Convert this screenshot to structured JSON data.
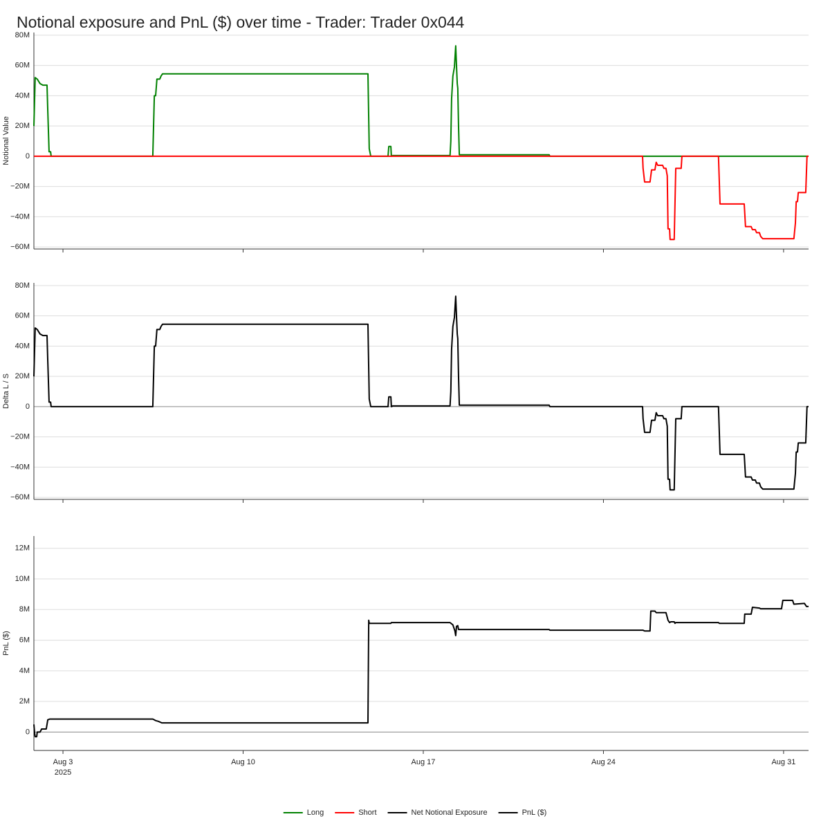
{
  "title": "Notional exposure and PnL ($) over time - Trader: Trader 0x044",
  "chart_data": [
    {
      "type": "line",
      "ylabel": "Notional Value",
      "xlim": [
        1.87,
        31.97
      ],
      "ylim": [
        -61300000.0,
        81800000.0
      ],
      "yticks": [
        {
          "value": 80000000.0,
          "label": "80M"
        },
        {
          "value": 60000000.0,
          "label": "60M"
        },
        {
          "value": 40000000.0,
          "label": "40M"
        },
        {
          "value": 20000000.0,
          "label": "20M"
        },
        0,
        {
          "value": -20000000.0,
          "label": "−20M"
        },
        {
          "value": -40000000.0,
          "label": "−40M"
        },
        {
          "value": -60000000.0,
          "label": "−60M"
        }
      ],
      "grid": true,
      "series": [
        {
          "name": "Long",
          "color": "#008000",
          "x": [
            1.87,
            1.92,
            2.0,
            2.11,
            2.22,
            2.38,
            2.41,
            2.46,
            2.52,
            2.54,
            6.49,
            6.55,
            6.6,
            6.65,
            6.76,
            6.81,
            6.87,
            14.85,
            14.9,
            14.96,
            15.63,
            15.66,
            15.74,
            15.76,
            15.82,
            18.04,
            18.07,
            18.1,
            18.15,
            18.21,
            18.26,
            18.29,
            18.32,
            18.34,
            18.37,
            18.4,
            21.89,
            21.92,
            31.97
          ],
          "values": [
            20000000.0,
            52000000.0,
            51000000.0,
            48000000.0,
            47000000.0,
            47000000.0,
            30000000.0,
            3000000.0,
            3000000.0,
            0,
            0,
            40000000.0,
            40000000.0,
            51000000.0,
            51000000.0,
            53000000.0,
            54500000.0,
            54500000.0,
            5000000.0,
            0,
            0,
            6500000.0,
            6500000.0,
            0,
            500000.0,
            500000.0,
            10000000.0,
            38000000.0,
            53000000.0,
            59000000.0,
            73000000.0,
            60000000.0,
            48000000.0,
            45000000.0,
            20000000.0,
            1000000.0,
            1000000.0,
            0,
            0
          ]
        },
        {
          "name": "Short",
          "color": "#ff0000",
          "x": [
            1.87,
            25.52,
            25.54,
            25.6,
            25.81,
            25.87,
            26.0,
            26.05,
            26.11,
            26.3,
            26.35,
            26.43,
            26.48,
            26.51,
            26.57,
            26.59,
            26.75,
            26.81,
            27.02,
            27.05,
            28.47,
            28.53,
            29.47,
            29.52,
            29.74,
            29.79,
            29.9,
            29.95,
            30.06,
            30.11,
            30.19,
            31.4,
            31.46,
            31.49,
            31.54,
            31.57,
            31.86,
            31.91,
            31.97
          ],
          "values": [
            0,
            0,
            -8000000.0,
            -17000000.0,
            -17000000.0,
            -9000000.0,
            -9000000.0,
            -4000000.0,
            -6000000.0,
            -6000000.0,
            -8000000.0,
            -8000000.0,
            -13000000.0,
            -48000000.0,
            -48000000.0,
            -55000000.0,
            -55000000.0,
            -8000000.0,
            -8000000.0,
            0,
            0,
            -31500000.0,
            -31500000.0,
            -46500000.0,
            -46500000.0,
            -48500000.0,
            -48500000.0,
            -50500000.0,
            -50500000.0,
            -53000000.0,
            -54500000.0,
            -54500000.0,
            -44000000.0,
            -30000000.0,
            -30000000.0,
            -24000000.0,
            -24000000.0,
            0,
            0
          ]
        }
      ]
    },
    {
      "type": "line",
      "ylabel": "Delta L / S",
      "xlim": [
        1.87,
        31.97
      ],
      "ylim": [
        -61300000.0,
        81800000.0
      ],
      "yticks": [
        {
          "value": 80000000.0,
          "label": "80M"
        },
        {
          "value": 60000000.0,
          "label": "60M"
        },
        {
          "value": 40000000.0,
          "label": "40M"
        },
        {
          "value": 20000000.0,
          "label": "20M"
        },
        0,
        {
          "value": -20000000.0,
          "label": "−20M"
        },
        {
          "value": -40000000.0,
          "label": "−40M"
        },
        {
          "value": -60000000.0,
          "label": "−60M"
        }
      ],
      "grid": true,
      "series": [
        {
          "name": "Net Notional Exposure",
          "color": "#000000",
          "x": [
            1.87,
            1.92,
            2.0,
            2.11,
            2.22,
            2.38,
            2.41,
            2.46,
            2.52,
            2.54,
            6.49,
            6.55,
            6.6,
            6.65,
            6.76,
            6.81,
            6.87,
            14.85,
            14.9,
            14.96,
            15.63,
            15.66,
            15.74,
            15.76,
            15.82,
            18.04,
            18.07,
            18.1,
            18.15,
            18.21,
            18.26,
            18.29,
            18.32,
            18.34,
            18.37,
            18.4,
            21.89,
            21.92,
            25.52,
            25.54,
            25.6,
            25.81,
            25.87,
            26.0,
            26.05,
            26.11,
            26.3,
            26.35,
            26.43,
            26.48,
            26.51,
            26.57,
            26.59,
            26.75,
            26.81,
            27.02,
            27.05,
            28.47,
            28.53,
            29.47,
            29.52,
            29.74,
            29.79,
            29.9,
            29.95,
            30.06,
            30.11,
            30.19,
            31.4,
            31.46,
            31.49,
            31.54,
            31.57,
            31.86,
            31.91,
            31.97
          ],
          "values": [
            20000000.0,
            52000000.0,
            51000000.0,
            48000000.0,
            47000000.0,
            47000000.0,
            30000000.0,
            3000000.0,
            3000000.0,
            0,
            0,
            40000000.0,
            40000000.0,
            51000000.0,
            51000000.0,
            53000000.0,
            54500000.0,
            54500000.0,
            5000000.0,
            0,
            0,
            6500000.0,
            6500000.0,
            0,
            500000.0,
            500000.0,
            10000000.0,
            38000000.0,
            53000000.0,
            59000000.0,
            73000000.0,
            60000000.0,
            48000000.0,
            45000000.0,
            20000000.0,
            1000000.0,
            1000000.0,
            0,
            0,
            -8000000.0,
            -17000000.0,
            -17000000.0,
            -9000000.0,
            -9000000.0,
            -4000000.0,
            -6000000.0,
            -6000000.0,
            -8000000.0,
            -8000000.0,
            -13000000.0,
            -48000000.0,
            -48000000.0,
            -55000000.0,
            -55000000.0,
            -8000000.0,
            -8000000.0,
            0,
            0,
            -31500000.0,
            -31500000.0,
            -46500000.0,
            -46500000.0,
            -48500000.0,
            -48500000.0,
            -50500000.0,
            -50500000.0,
            -53000000.0,
            -54500000.0,
            -54500000.0,
            -44000000.0,
            -30000000.0,
            -30000000.0,
            -24000000.0,
            -24000000.0,
            0,
            0
          ]
        }
      ]
    },
    {
      "type": "line",
      "ylabel": "PnL ($)",
      "xlim": [
        1.87,
        31.97
      ],
      "ylim": [
        -1200000.0,
        12800000.0
      ],
      "yticks": [
        {
          "value": 12000000.0,
          "label": "12M"
        },
        {
          "value": 10000000.0,
          "label": "10M"
        },
        {
          "value": 8000000.0,
          "label": "8M"
        },
        {
          "value": 6000000.0,
          "label": "6M"
        },
        {
          "value": 4000000.0,
          "label": "4M"
        },
        {
          "value": 2000000.0,
          "label": "2M"
        },
        0
      ],
      "xticks": [
        {
          "value": 3,
          "label": "Aug 3\n2025"
        },
        {
          "value": 10,
          "label": "Aug 10"
        },
        {
          "value": 17,
          "label": "Aug 17"
        },
        {
          "value": 24,
          "label": "Aug 24"
        },
        {
          "value": 31,
          "label": "Aug 31"
        }
      ],
      "grid": true,
      "series": [
        {
          "name": "PnL ($)",
          "color": "#000000",
          "x": [
            1.87,
            1.9,
            1.92,
            1.98,
            2.0,
            2.11,
            2.17,
            2.35,
            2.41,
            2.49,
            6.49,
            6.55,
            6.6,
            6.71,
            6.84,
            14.85,
            14.88,
            14.9,
            15.74,
            15.76,
            18.04,
            18.15,
            18.23,
            18.26,
            18.29,
            18.34,
            18.37,
            21.89,
            21.92,
            25.54,
            25.6,
            25.81,
            25.84,
            26.0,
            26.05,
            26.43,
            26.51,
            26.57,
            26.62,
            26.75,
            26.78,
            26.81,
            28.47,
            28.5,
            29.47,
            29.49,
            29.74,
            29.79,
            30.06,
            30.11,
            30.92,
            30.97,
            31.35,
            31.4,
            31.81,
            31.89,
            31.97
          ],
          "values": [
            500000.0,
            -100000.0,
            -300000.0,
            -300000.0,
            0,
            0,
            200000.0,
            200000.0,
            800000.0,
            850000.0,
            850000.0,
            800000.0,
            750000.0,
            700000.0,
            600000.0,
            600000.0,
            7300000.0,
            7100000.0,
            7100000.0,
            7150000.0,
            7150000.0,
            7000000.0,
            6600000.0,
            6300000.0,
            6900000.0,
            6950000.0,
            6700000.0,
            6700000.0,
            6650000.0,
            6650000.0,
            6600000.0,
            6600000.0,
            7900000.0,
            7900000.0,
            7800000.0,
            7800000.0,
            7300000.0,
            7150000.0,
            7200000.0,
            7200000.0,
            7100000.0,
            7150000.0,
            7150000.0,
            7100000.0,
            7100000.0,
            7700000.0,
            7700000.0,
            8150000.0,
            8100000.0,
            8050000.0,
            8050000.0,
            8600000.0,
            8600000.0,
            8350000.0,
            8400000.0,
            8200000.0,
            8200000.0
          ]
        }
      ]
    }
  ]
}
